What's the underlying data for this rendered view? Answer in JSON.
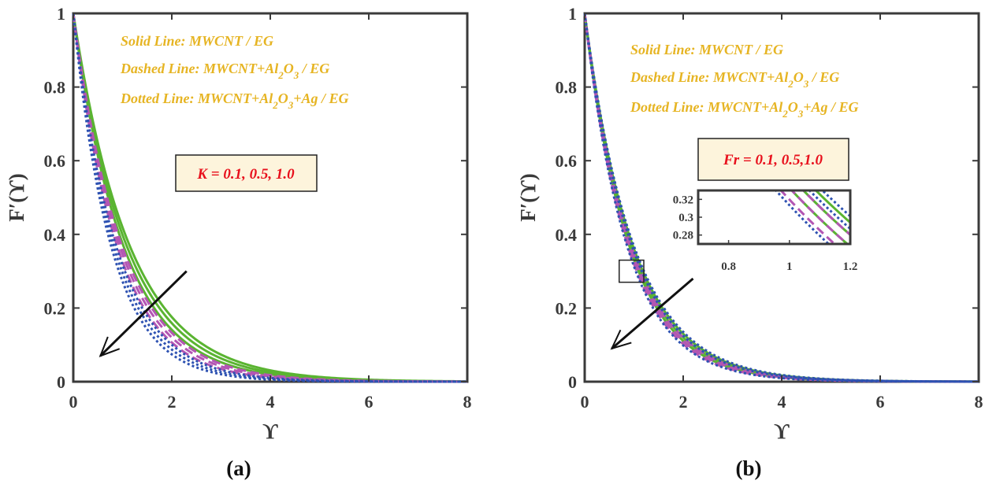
{
  "colors": {
    "green": "#5ab431",
    "magenta": "#b356b3",
    "blue": "#2e52b2",
    "legend_text": "#e6b422",
    "param_text": "#e8101c",
    "param_box_fill": "#fdf4dc",
    "axis": "#3a3a3a"
  },
  "chart_data": [
    {
      "type": "line",
      "panel_label": "(a)",
      "xlabel": "ϒ",
      "ylabel": "F′(ϒ)",
      "xlim": [
        0,
        8
      ],
      "ylim": [
        0,
        1
      ],
      "xticks": [
        "0",
        "2",
        "4",
        "6",
        "8"
      ],
      "yticks": [
        "0",
        "0.2",
        "0.4",
        "0.6",
        "0.8",
        "1"
      ],
      "legend_lines": [
        {
          "prefix": "Solid Line: MWCNT / EG",
          "sub": []
        },
        {
          "prefix": "Dashed Line: MWCNT+Al",
          "sub": [
            "2",
            "O",
            "3"
          ],
          "suffix": " / EG"
        },
        {
          "prefix": "Dotted Line: MWCNT+Al",
          "sub": [
            "2",
            "O",
            "3"
          ],
          "suffix": "+Ag / EG"
        }
      ],
      "parameter_label": "K = 0.1, 0.5, 1.0",
      "arrow": {
        "from": [
          2.3,
          0.3
        ],
        "to": [
          0.55,
          0.07
        ]
      },
      "series": [
        {
          "style": "solid",
          "color": "green",
          "decay_rates": [
            0.98,
            0.92,
            0.87
          ]
        },
        {
          "style": "dashed",
          "color": "magenta",
          "decay_rates": [
            1.12,
            1.06,
            1.01
          ]
        },
        {
          "style": "dotted",
          "color": "blue",
          "decay_rates": [
            1.3,
            1.22,
            1.15
          ]
        }
      ]
    },
    {
      "type": "line",
      "panel_label": "(b)",
      "xlabel": "ϒ",
      "ylabel": "F′(ϒ)",
      "xlim": [
        0,
        8
      ],
      "ylim": [
        0,
        1
      ],
      "xticks": [
        "0",
        "2",
        "4",
        "6",
        "8"
      ],
      "yticks": [
        "0",
        "0.2",
        "0.4",
        "0.6",
        "0.8",
        "1"
      ],
      "legend_lines": [
        {
          "prefix": "Solid Line: MWCNT / EG",
          "sub": []
        },
        {
          "prefix": "Dashed Line: MWCNT+Al",
          "sub": [
            "2",
            "O",
            "3"
          ],
          "suffix": " / EG"
        },
        {
          "prefix": "Dotted Line: MWCNT+Al",
          "sub": [
            "2",
            "O",
            "3"
          ],
          "suffix": "+Ag / EG"
        }
      ],
      "parameter_label": "Fr = 0.1, 0.5,1.0",
      "arrow": {
        "from": [
          2.2,
          0.28
        ],
        "to": [
          0.55,
          0.09
        ]
      },
      "series": [
        {
          "style": "solid",
          "color": "green",
          "decay_rates": [
            1.02,
            1.06,
            1.1
          ]
        },
        {
          "style": "dashed",
          "color": "magenta",
          "decay_rates": [
            1.06,
            1.1,
            1.14
          ]
        },
        {
          "style": "dotted",
          "color": "blue",
          "decay_rates": [
            1.0,
            1.04,
            1.16
          ]
        }
      ],
      "zoom_region": {
        "xlim": [
          0.7,
          1.2
        ],
        "ylim": [
          0.27,
          0.33
        ]
      },
      "inset": {
        "xlim": [
          0.7,
          1.2
        ],
        "ylim": [
          0.27,
          0.33
        ],
        "xticks": [
          "0.8",
          "1",
          "1.2"
        ],
        "yticks": [
          "0.28",
          "0.3",
          "0.32"
        ]
      }
    }
  ]
}
